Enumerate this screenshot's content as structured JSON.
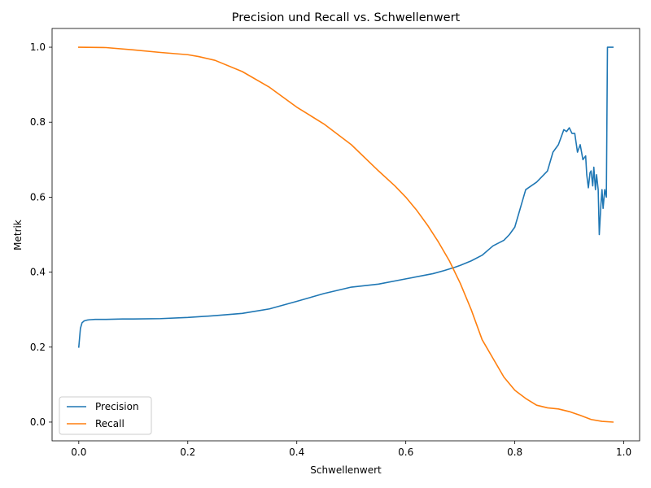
{
  "chart_data": {
    "type": "line",
    "title": "Precision und Recall vs. Schwellenwert",
    "xlabel": "Schwellenwert",
    "ylabel": "Metrik",
    "xlim": [
      -0.049,
      1.029
    ],
    "ylim": [
      -0.05,
      1.05
    ],
    "xticks": [
      0.0,
      0.2,
      0.4,
      0.6,
      0.8,
      1.0
    ],
    "xtick_labels": [
      "0.0",
      "0.2",
      "0.4",
      "0.6",
      "0.8",
      "1.0"
    ],
    "yticks": [
      0.0,
      0.2,
      0.4,
      0.6,
      0.8,
      1.0
    ],
    "ytick_labels": [
      "0.0",
      "0.2",
      "0.4",
      "0.6",
      "0.8",
      "1.0"
    ],
    "grid": false,
    "legend": "lower-left",
    "series": [
      {
        "name": "Precision",
        "color": "#1f77b4",
        "x": [
          0.0,
          0.003,
          0.006,
          0.01,
          0.015,
          0.02,
          0.03,
          0.05,
          0.08,
          0.1,
          0.15,
          0.2,
          0.25,
          0.3,
          0.35,
          0.4,
          0.45,
          0.5,
          0.55,
          0.6,
          0.65,
          0.67,
          0.69,
          0.7,
          0.72,
          0.74,
          0.76,
          0.78,
          0.79,
          0.8,
          0.81,
          0.82,
          0.83,
          0.84,
          0.85,
          0.86,
          0.87,
          0.88,
          0.89,
          0.895,
          0.9,
          0.905,
          0.91,
          0.915,
          0.92,
          0.925,
          0.93,
          0.932,
          0.935,
          0.938,
          0.94,
          0.943,
          0.945,
          0.948,
          0.95,
          0.953,
          0.955,
          0.958,
          0.96,
          0.962,
          0.965,
          0.968,
          0.97,
          0.975,
          0.98
        ],
        "y": [
          0.2,
          0.25,
          0.265,
          0.27,
          0.272,
          0.273,
          0.274,
          0.274,
          0.275,
          0.275,
          0.276,
          0.279,
          0.284,
          0.29,
          0.302,
          0.322,
          0.343,
          0.36,
          0.368,
          0.382,
          0.396,
          0.404,
          0.413,
          0.418,
          0.43,
          0.445,
          0.47,
          0.485,
          0.5,
          0.52,
          0.57,
          0.62,
          0.63,
          0.64,
          0.655,
          0.67,
          0.72,
          0.74,
          0.78,
          0.775,
          0.785,
          0.77,
          0.77,
          0.72,
          0.74,
          0.7,
          0.71,
          0.66,
          0.625,
          0.665,
          0.67,
          0.63,
          0.68,
          0.62,
          0.66,
          0.62,
          0.5,
          0.58,
          0.62,
          0.57,
          0.62,
          0.6,
          1.0,
          1.0,
          1.0
        ]
      },
      {
        "name": "Recall",
        "color": "#ff7f0e",
        "x": [
          0.0,
          0.05,
          0.1,
          0.15,
          0.2,
          0.22,
          0.25,
          0.3,
          0.35,
          0.4,
          0.45,
          0.5,
          0.55,
          0.58,
          0.6,
          0.62,
          0.64,
          0.66,
          0.68,
          0.7,
          0.72,
          0.74,
          0.76,
          0.78,
          0.8,
          0.82,
          0.84,
          0.86,
          0.88,
          0.9,
          0.92,
          0.94,
          0.96,
          0.98
        ],
        "y": [
          1.0,
          0.999,
          0.993,
          0.986,
          0.98,
          0.975,
          0.965,
          0.935,
          0.893,
          0.84,
          0.795,
          0.74,
          0.67,
          0.63,
          0.6,
          0.565,
          0.525,
          0.48,
          0.43,
          0.37,
          0.3,
          0.22,
          0.17,
          0.12,
          0.085,
          0.063,
          0.045,
          0.038,
          0.035,
          0.028,
          0.018,
          0.007,
          0.002,
          0.0
        ]
      }
    ]
  }
}
